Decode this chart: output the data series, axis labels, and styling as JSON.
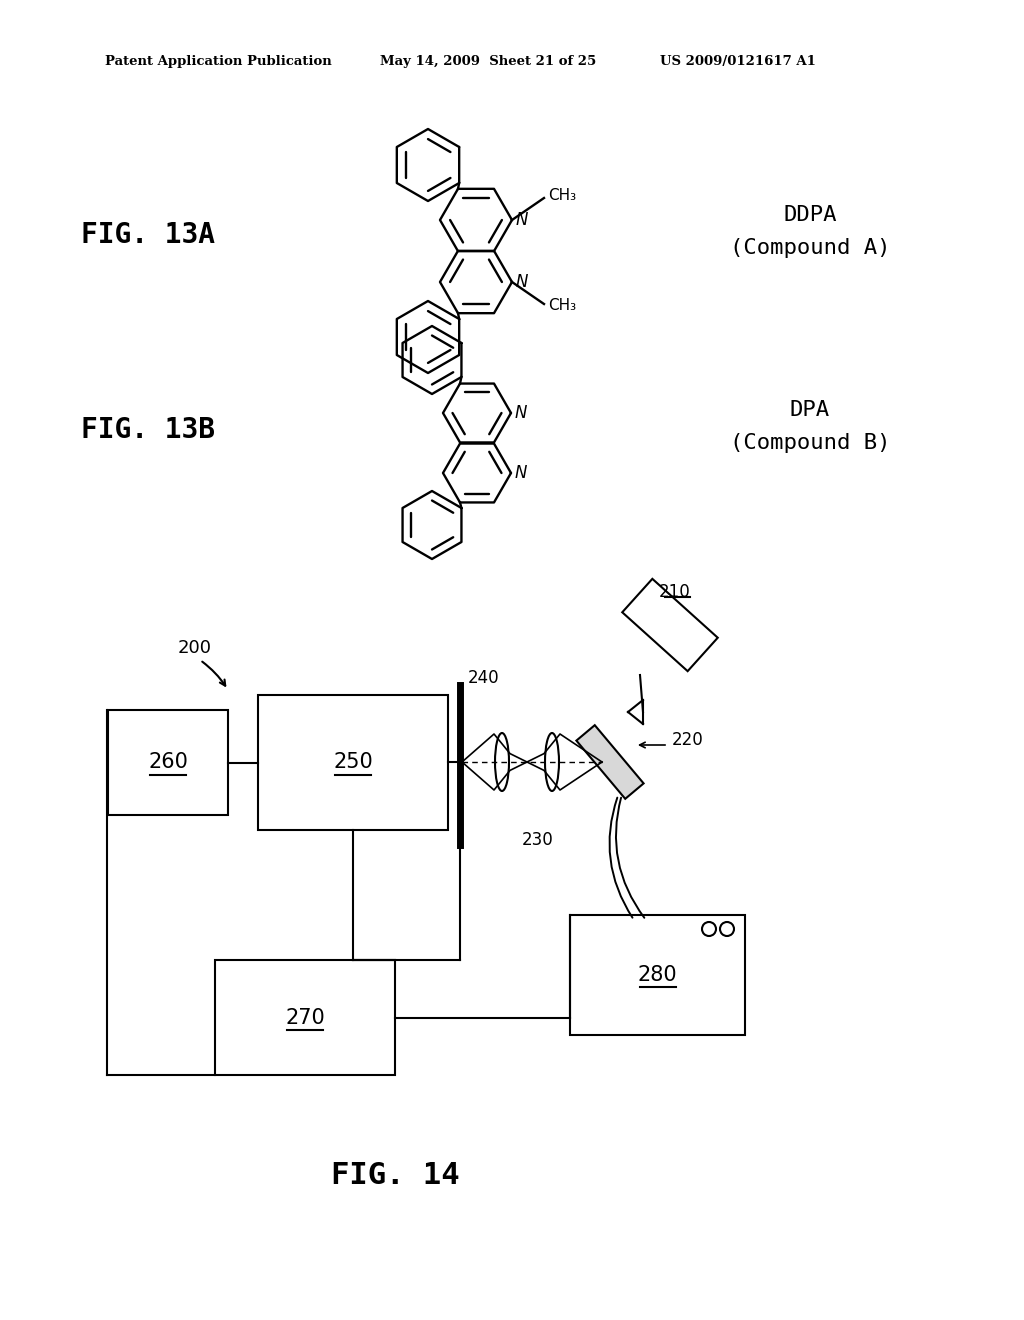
{
  "background_color": "#ffffff",
  "header_left": "Patent Application Publication",
  "header_center": "May 14, 2009  Sheet 21 of 25",
  "header_right": "US 2009/0121617 A1",
  "fig13a_label": "FIG. 13A",
  "fig13a_compound_line1": "DDPA",
  "fig13a_compound_line2": "(Compound A)",
  "fig13b_label": "FIG. 13B",
  "fig13b_compound_line1": "DPA",
  "fig13b_compound_line2": "(Compound B)",
  "fig14_label": "FIG. 14",
  "label_200": "200",
  "label_210": "210",
  "label_220": "220",
  "label_230": "230",
  "label_240": "240",
  "label_250": "250",
  "label_260": "260",
  "label_270": "270",
  "label_280": "280"
}
